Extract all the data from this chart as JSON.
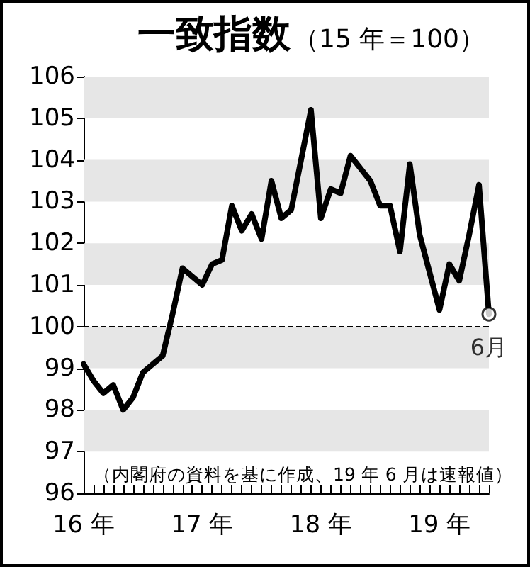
{
  "chart_data": {
    "type": "line",
    "title": "一致指数",
    "subtitle": "（15 年＝100）",
    "categories": [
      "16 年",
      null,
      null,
      null,
      null,
      null,
      null,
      null,
      null,
      null,
      null,
      null,
      "17 年",
      null,
      null,
      null,
      null,
      null,
      null,
      null,
      null,
      null,
      null,
      null,
      "18 年",
      null,
      null,
      null,
      null,
      null,
      null,
      null,
      null,
      null,
      null,
      null,
      "19 年",
      null,
      null,
      null,
      null,
      null
    ],
    "series": [
      {
        "color": "#000000",
        "values": [
          99.1,
          98.7,
          98.4,
          98.6,
          98.0,
          98.3,
          98.9,
          99.1,
          99.3,
          100.3,
          101.4,
          101.2,
          101.0,
          101.5,
          101.6,
          102.9,
          102.3,
          102.7,
          102.1,
          103.5,
          102.6,
          102.8,
          104.0,
          105.2,
          102.6,
          103.3,
          103.2,
          104.1,
          103.8,
          103.5,
          102.9,
          102.9,
          101.8,
          103.9,
          102.2,
          101.3,
          100.4,
          101.5,
          101.1,
          102.2,
          103.4,
          100.3
        ]
      }
    ],
    "ylim": [
      96,
      106
    ],
    "yticks": [
      96,
      97,
      98,
      99,
      100,
      101,
      102,
      103,
      104,
      105,
      106
    ],
    "marker": "none",
    "line_style": "solid",
    "bands": [
      {
        "axis": "y",
        "from": 105,
        "to": 106,
        "color": "#e6e6e6"
      },
      {
        "axis": "y",
        "from": 103,
        "to": 104,
        "color": "#e6e6e6"
      },
      {
        "axis": "y",
        "from": 101,
        "to": 102,
        "color": "#e6e6e6"
      },
      {
        "axis": "y",
        "from": 99,
        "to": 100,
        "color": "#e6e6e6"
      },
      {
        "axis": "y",
        "from": 97,
        "to": 98,
        "color": "#e6e6e6"
      }
    ],
    "ref_lines": [
      {
        "axis": "y",
        "value": 100,
        "line_style": "dashed",
        "color": "#000000"
      }
    ],
    "annotations": [
      {
        "text": "6月",
        "y": 100.3
      },
      "（内閣府の資料を基に作成、19 年 6 月は速報値）"
    ]
  }
}
